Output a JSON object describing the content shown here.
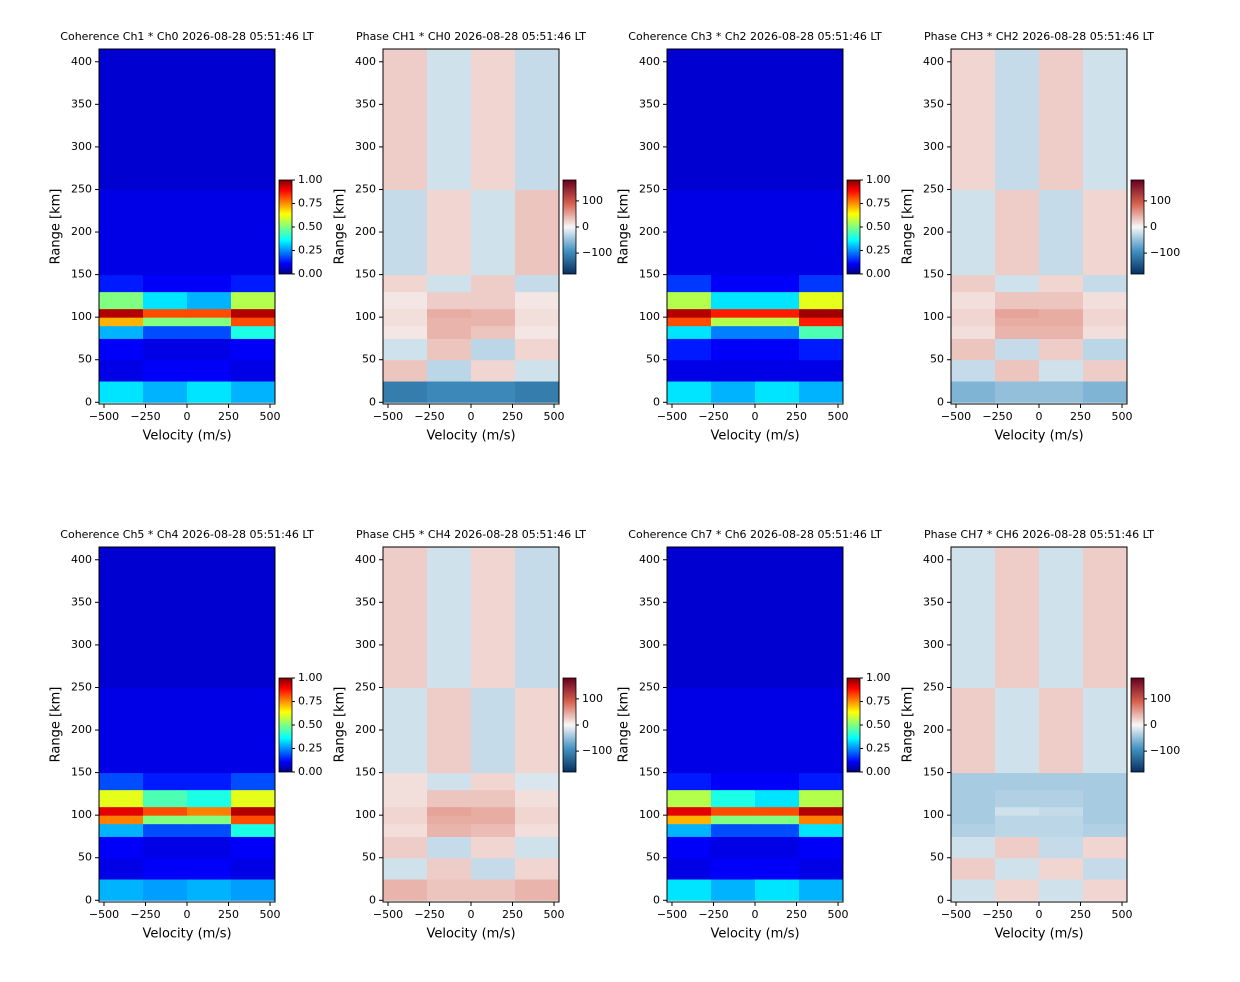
{
  "chart_data": [
    {
      "type": "heatmap",
      "title": "Coherence Ch1 * Ch0 2026-08-28 05:51:46 LT",
      "xlabel": "Velocity (m/s)",
      "ylabel": "Range [km]",
      "colormap": "jet",
      "x_bins": [
        -530,
        -265,
        0,
        265,
        530
      ],
      "y_bins": [
        0,
        25,
        50,
        75,
        90,
        100,
        110,
        130,
        150,
        250,
        415
      ],
      "values": [
        [
          0.35,
          0.3,
          0.35,
          0.3
        ],
        [
          0.1,
          0.12,
          0.12,
          0.1
        ],
        [
          0.12,
          0.1,
          0.1,
          0.12
        ],
        [
          0.3,
          0.2,
          0.2,
          0.4
        ],
        [
          0.7,
          0.5,
          0.5,
          0.8
        ],
        [
          0.95,
          0.8,
          0.8,
          0.95
        ],
        [
          0.5,
          0.35,
          0.3,
          0.55
        ],
        [
          0.15,
          0.12,
          0.12,
          0.15
        ],
        [
          0.1,
          0.1,
          0.1,
          0.1
        ],
        [
          0.08,
          0.08,
          0.08,
          0.08
        ]
      ],
      "zlim": [
        0,
        1
      ],
      "zticks": [
        {
          "value": 0,
          "label": "0.00"
        },
        {
          "value": 0.25,
          "label": "0.25"
        },
        {
          "value": 0.5,
          "label": "0.50"
        },
        {
          "value": 0.75,
          "label": "0.75"
        },
        {
          "value": 1,
          "label": "1.00"
        }
      ],
      "xlim": [
        -530,
        530
      ],
      "ylim": [
        -2,
        415
      ],
      "xticks": [
        {
          "value": -500,
          "label": "−500"
        },
        {
          "value": -250,
          "label": "−250"
        },
        0,
        250,
        500
      ],
      "yticks": [
        0,
        50,
        100,
        150,
        200,
        250,
        300,
        350,
        400
      ]
    },
    {
      "type": "heatmap",
      "title": "Phase CH1 * CH0 2026-08-28 05:51:46 LT",
      "xlabel": "Velocity (m/s)",
      "ylabel": "Range [km]",
      "colormap": "RdBu_r",
      "x_bins": [
        -530,
        -265,
        0,
        265,
        530
      ],
      "y_bins": [
        0,
        25,
        50,
        75,
        90,
        100,
        110,
        130,
        150,
        250,
        415
      ],
      "values": [
        [
          -110,
          -100,
          -100,
          -110
        ],
        [
          30,
          -30,
          20,
          -20
        ],
        [
          -20,
          30,
          -30,
          20
        ],
        [
          10,
          40,
          30,
          10
        ],
        [
          15,
          40,
          40,
          15
        ],
        [
          15,
          45,
          40,
          15
        ],
        [
          10,
          25,
          25,
          10
        ],
        [
          20,
          -20,
          25,
          -25
        ],
        [
          -25,
          20,
          -20,
          30
        ],
        [
          25,
          -20,
          20,
          -25
        ]
      ],
      "zlim": [
        -180,
        180
      ],
      "zticks": [
        {
          "value": -100,
          "label": "−100"
        },
        0,
        100
      ],
      "xlim": [
        -530,
        530
      ],
      "ylim": [
        -2,
        415
      ],
      "xticks": [
        {
          "value": -500,
          "label": "−500"
        },
        {
          "value": -250,
          "label": "−250"
        },
        0,
        250,
        500
      ],
      "yticks": [
        0,
        50,
        100,
        150,
        200,
        250,
        300,
        350,
        400
      ]
    },
    {
      "type": "heatmap",
      "title": "Coherence Ch3 * Ch2 2026-08-28 05:51:46 LT",
      "xlabel": "Velocity (m/s)",
      "ylabel": "Range [km]",
      "colormap": "jet",
      "x_bins": [
        -530,
        -265,
        0,
        265,
        530
      ],
      "y_bins": [
        0,
        25,
        50,
        75,
        90,
        100,
        110,
        130,
        150,
        250,
        415
      ],
      "values": [
        [
          0.35,
          0.3,
          0.35,
          0.3
        ],
        [
          0.1,
          0.1,
          0.1,
          0.1
        ],
        [
          0.15,
          0.12,
          0.12,
          0.15
        ],
        [
          0.35,
          0.25,
          0.25,
          0.45
        ],
        [
          0.8,
          0.55,
          0.55,
          0.85
        ],
        [
          0.95,
          0.85,
          0.85,
          0.97
        ],
        [
          0.55,
          0.35,
          0.35,
          0.6
        ],
        [
          0.18,
          0.12,
          0.12,
          0.18
        ],
        [
          0.1,
          0.1,
          0.1,
          0.1
        ],
        [
          0.08,
          0.08,
          0.08,
          0.08
        ]
      ],
      "zlim": [
        0,
        1
      ],
      "zticks": [
        {
          "value": 0,
          "label": "0.00"
        },
        {
          "value": 0.25,
          "label": "0.25"
        },
        {
          "value": 0.5,
          "label": "0.50"
        },
        {
          "value": 0.75,
          "label": "0.75"
        },
        {
          "value": 1,
          "label": "1.00"
        }
      ],
      "xlim": [
        -530,
        530
      ],
      "ylim": [
        -2,
        415
      ],
      "xticks": [
        {
          "value": -500,
          "label": "−500"
        },
        {
          "value": -250,
          "label": "−250"
        },
        0,
        250,
        500
      ],
      "yticks": [
        0,
        50,
        100,
        150,
        200,
        250,
        300,
        350,
        400
      ]
    },
    {
      "type": "heatmap",
      "title": "Phase CH3 * CH2 2026-08-28 05:51:46 LT",
      "xlabel": "Velocity (m/s)",
      "ylabel": "Range [km]",
      "colormap": "RdBu_r",
      "x_bins": [
        -530,
        -265,
        0,
        265,
        530
      ],
      "y_bins": [
        0,
        25,
        50,
        75,
        90,
        100,
        110,
        130,
        150,
        250,
        415
      ],
      "values": [
        [
          -60,
          -50,
          -50,
          -60
        ],
        [
          -25,
          30,
          -20,
          25
        ],
        [
          30,
          -25,
          25,
          -30
        ],
        [
          15,
          40,
          40,
          15
        ],
        [
          20,
          45,
          45,
          20
        ],
        [
          20,
          50,
          45,
          20
        ],
        [
          15,
          30,
          30,
          15
        ],
        [
          25,
          -20,
          20,
          -25
        ],
        [
          -20,
          25,
          -25,
          20
        ],
        [
          20,
          -25,
          25,
          -20
        ]
      ],
      "zlim": [
        -180,
        180
      ],
      "zticks": [
        {
          "value": -100,
          "label": "−100"
        },
        0,
        100
      ],
      "xlim": [
        -530,
        530
      ],
      "ylim": [
        -2,
        415
      ],
      "xticks": [
        {
          "value": -500,
          "label": "−500"
        },
        {
          "value": -250,
          "label": "−250"
        },
        0,
        250,
        500
      ],
      "yticks": [
        0,
        50,
        100,
        150,
        200,
        250,
        300,
        350,
        400
      ]
    },
    {
      "type": "heatmap",
      "title": "Coherence Ch5 * Ch4 2026-08-28 05:51:46 LT",
      "xlabel": "Velocity (m/s)",
      "ylabel": "Range [km]",
      "colormap": "jet",
      "x_bins": [
        -530,
        -265,
        0,
        265,
        530
      ],
      "y_bins": [
        0,
        25,
        50,
        75,
        90,
        100,
        110,
        130,
        150,
        250,
        415
      ],
      "values": [
        [
          0.3,
          0.28,
          0.3,
          0.28
        ],
        [
          0.1,
          0.12,
          0.12,
          0.1
        ],
        [
          0.12,
          0.1,
          0.1,
          0.12
        ],
        [
          0.3,
          0.2,
          0.2,
          0.4
        ],
        [
          0.75,
          0.5,
          0.5,
          0.8
        ],
        [
          0.9,
          0.8,
          0.75,
          0.95
        ],
        [
          0.6,
          0.45,
          0.4,
          0.6
        ],
        [
          0.2,
          0.15,
          0.15,
          0.2
        ],
        [
          0.1,
          0.1,
          0.1,
          0.1
        ],
        [
          0.08,
          0.08,
          0.08,
          0.08
        ]
      ],
      "zlim": [
        0,
        1
      ],
      "zticks": [
        {
          "value": 0,
          "label": "0.00"
        },
        {
          "value": 0.25,
          "label": "0.25"
        },
        {
          "value": 0.5,
          "label": "0.50"
        },
        {
          "value": 0.75,
          "label": "0.75"
        },
        {
          "value": 1,
          "label": "1.00"
        }
      ],
      "xlim": [
        -530,
        530
      ],
      "ylim": [
        -2,
        415
      ],
      "xticks": [
        {
          "value": -500,
          "label": "−500"
        },
        {
          "value": -250,
          "label": "−250"
        },
        0,
        250,
        500
      ],
      "yticks": [
        0,
        50,
        100,
        150,
        200,
        250,
        300,
        350,
        400
      ]
    },
    {
      "type": "heatmap",
      "title": "Phase CH5 * CH4 2026-08-28 05:51:46 LT",
      "xlabel": "Velocity (m/s)",
      "ylabel": "Range [km]",
      "colormap": "RdBu_r",
      "x_bins": [
        -530,
        -265,
        0,
        265,
        530
      ],
      "y_bins": [
        0,
        25,
        50,
        75,
        90,
        100,
        110,
        130,
        150,
        250,
        415
      ],
      "values": [
        [
          40,
          30,
          30,
          40
        ],
        [
          -20,
          25,
          -25,
          20
        ],
        [
          25,
          -25,
          20,
          -20
        ],
        [
          15,
          40,
          35,
          15
        ],
        [
          20,
          45,
          45,
          20
        ],
        [
          20,
          50,
          45,
          20
        ],
        [
          15,
          30,
          30,
          15
        ],
        [
          15,
          -20,
          20,
          -15
        ],
        [
          -20,
          25,
          -25,
          20
        ],
        [
          25,
          -20,
          20,
          -25
        ]
      ],
      "zlim": [
        -180,
        180
      ],
      "zticks": [
        {
          "value": -100,
          "label": "−100"
        },
        0,
        100
      ],
      "xlim": [
        -530,
        530
      ],
      "ylim": [
        -2,
        415
      ],
      "xticks": [
        {
          "value": -500,
          "label": "−500"
        },
        {
          "value": -250,
          "label": "−250"
        },
        0,
        250,
        500
      ],
      "yticks": [
        0,
        50,
        100,
        150,
        200,
        250,
        300,
        350,
        400
      ]
    },
    {
      "type": "heatmap",
      "title": "Coherence Ch7 * Ch6 2026-08-28 05:51:46 LT",
      "xlabel": "Velocity (m/s)",
      "ylabel": "Range [km]",
      "colormap": "jet",
      "x_bins": [
        -530,
        -265,
        0,
        265,
        530
      ],
      "y_bins": [
        0,
        25,
        50,
        75,
        90,
        100,
        110,
        130,
        150,
        250,
        415
      ],
      "values": [
        [
          0.35,
          0.3,
          0.35,
          0.3
        ],
        [
          0.1,
          0.12,
          0.12,
          0.1
        ],
        [
          0.12,
          0.1,
          0.1,
          0.12
        ],
        [
          0.3,
          0.2,
          0.2,
          0.35
        ],
        [
          0.7,
          0.5,
          0.5,
          0.75
        ],
        [
          0.9,
          0.8,
          0.8,
          0.95
        ],
        [
          0.55,
          0.4,
          0.35,
          0.55
        ],
        [
          0.15,
          0.12,
          0.12,
          0.15
        ],
        [
          0.1,
          0.1,
          0.1,
          0.1
        ],
        [
          0.08,
          0.08,
          0.08,
          0.08
        ]
      ],
      "zlim": [
        0,
        1
      ],
      "zticks": [
        {
          "value": 0,
          "label": "0.00"
        },
        {
          "value": 0.25,
          "label": "0.25"
        },
        {
          "value": 0.5,
          "label": "0.50"
        },
        {
          "value": 0.75,
          "label": "0.75"
        },
        {
          "value": 1,
          "label": "1.00"
        }
      ],
      "xlim": [
        -530,
        530
      ],
      "ylim": [
        -2,
        415
      ],
      "xticks": [
        {
          "value": -500,
          "label": "−500"
        },
        {
          "value": -250,
          "label": "−250"
        },
        0,
        250,
        500
      ],
      "yticks": [
        0,
        50,
        100,
        150,
        200,
        250,
        300,
        350,
        400
      ]
    },
    {
      "type": "heatmap",
      "title": "Phase CH7 * CH6 2026-08-28 05:51:46 LT",
      "xlabel": "Velocity (m/s)",
      "ylabel": "Range [km]",
      "colormap": "RdBu_r",
      "x_bins": [
        -530,
        -265,
        0,
        265,
        530
      ],
      "y_bins": [
        0,
        25,
        50,
        75,
        90,
        100,
        110,
        130,
        150,
        250,
        415
      ],
      "values": [
        [
          -20,
          20,
          -20,
          20
        ],
        [
          25,
          -20,
          20,
          -25
        ],
        [
          -20,
          25,
          -25,
          20
        ],
        [
          -35,
          -30,
          -30,
          -35
        ],
        [
          -40,
          -30,
          -30,
          -40
        ],
        [
          -40,
          -20,
          -25,
          -40
        ],
        [
          -40,
          -35,
          -35,
          -40
        ],
        [
          -40,
          -40,
          -40,
          -40
        ],
        [
          25,
          -20,
          25,
          -20
        ],
        [
          -20,
          25,
          -20,
          25
        ]
      ],
      "zlim": [
        -180,
        180
      ],
      "zticks": [
        {
          "value": -100,
          "label": "−100"
        },
        0,
        100
      ],
      "xlim": [
        -530,
        530
      ],
      "ylim": [
        -2,
        415
      ],
      "xticks": [
        {
          "value": -500,
          "label": "−500"
        },
        {
          "value": -250,
          "label": "−250"
        },
        0,
        250,
        500
      ],
      "yticks": [
        0,
        50,
        100,
        150,
        200,
        250,
        300,
        350,
        400
      ]
    }
  ]
}
